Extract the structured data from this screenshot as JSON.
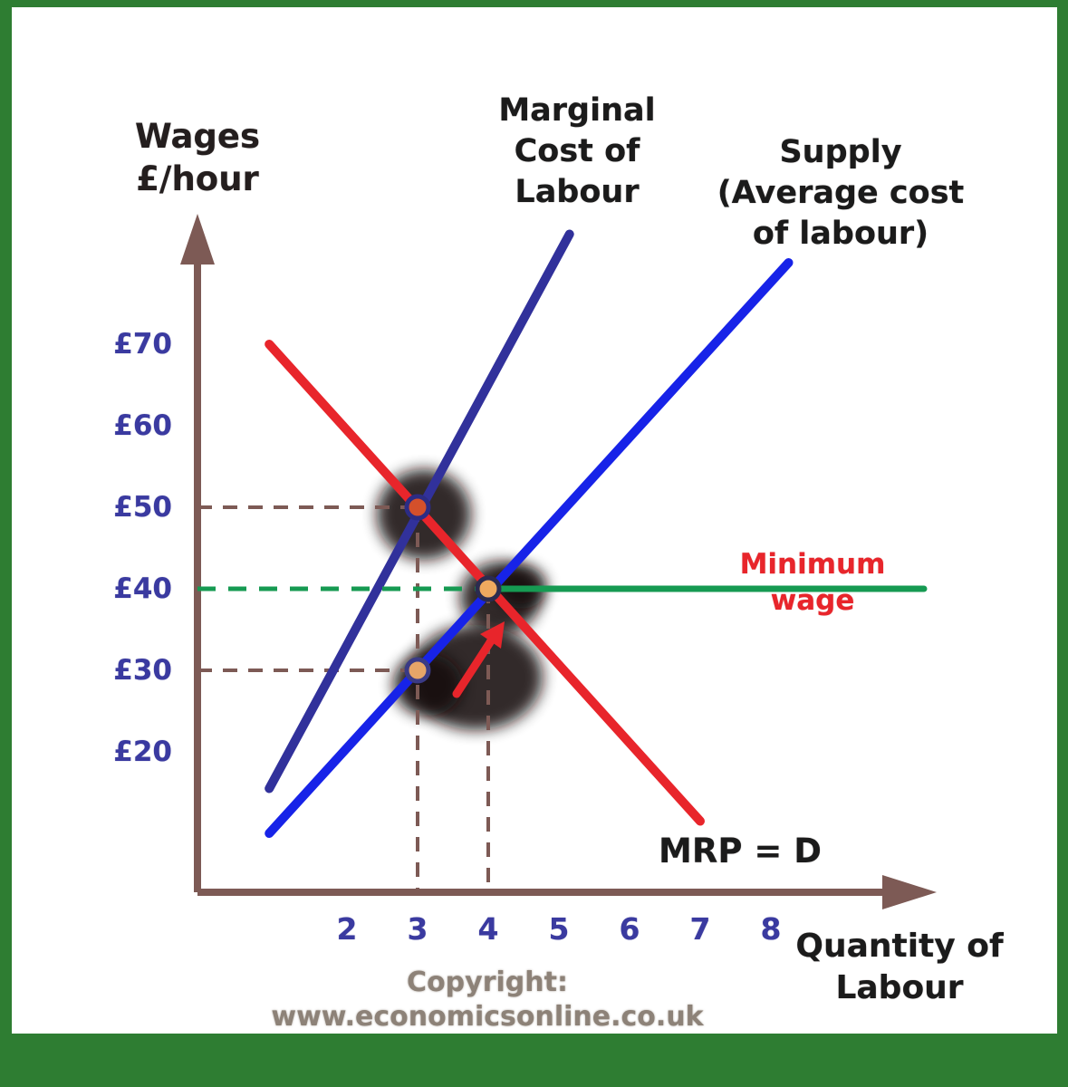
{
  "page": {
    "frame_color": "#2e7d32",
    "canvas_color": "#ffffff",
    "copyright": "Copyright: www.economicsonline.co.uk"
  },
  "chart_data": {
    "type": "line",
    "x_axis": {
      "label_lines": [
        "Quantity of",
        "Labour"
      ],
      "ticks": [
        "2",
        "3",
        "4",
        "5",
        "6",
        "7",
        "8"
      ],
      "tick_values": [
        2,
        3,
        4,
        5,
        6,
        7,
        8
      ],
      "range": [
        0,
        9.5
      ]
    },
    "y_axis": {
      "label_lines": [
        "Wages",
        "£/hour"
      ],
      "ticks": [
        "£70",
        "£60",
        "£50",
        "£40",
        "£30",
        "£20"
      ],
      "tick_values": [
        70,
        60,
        50,
        40,
        30,
        20
      ],
      "range": [
        10,
        85
      ],
      "unit": "£/hour"
    },
    "series": [
      {
        "name": "Marginal Cost of Labour",
        "label_lines": [
          "Marginal",
          "Cost of",
          "Labour"
        ],
        "color": "#31319b",
        "points": [
          [
            0.9,
            15.5
          ],
          [
            5.15,
            83.5
          ]
        ]
      },
      {
        "name": "Supply (Average cost of labour)",
        "label_lines": [
          "Supply",
          "(Average cost",
          "of labour)"
        ],
        "color": "#1723e8",
        "points": [
          [
            0.9,
            10
          ],
          [
            8.25,
            80
          ]
        ]
      },
      {
        "name": "MRP = D",
        "label": "MRP = D",
        "color": "#e8252b",
        "points": [
          [
            0.9,
            70
          ],
          [
            7.0,
            11.5
          ]
        ]
      },
      {
        "name": "Minimum wage",
        "label": "Minimum wage",
        "color": "#169a52",
        "type": "hline",
        "y": 40,
        "dashed_until_q": 4
      }
    ],
    "key_points": [
      {
        "q": 3,
        "wage": 50,
        "fill": "#d4502b",
        "ring": "#2c2c84"
      },
      {
        "q": 4,
        "wage": 40,
        "fill": "#efa95f",
        "ring": "#2b2b4f"
      },
      {
        "q": 3,
        "wage": 30,
        "fill": "#e6a568",
        "ring": "#3a3a85"
      }
    ],
    "guides": [
      {
        "type": "h",
        "wage": 50,
        "to_q": 3
      },
      {
        "type": "h",
        "wage": 30,
        "to_q": 3
      },
      {
        "type": "v",
        "q": 3,
        "from_wage": 50
      },
      {
        "type": "v",
        "q": 4,
        "from_wage": 40
      }
    ],
    "annotations": [
      {
        "name": "red-arrow",
        "color": "#e8252b"
      }
    ],
    "grid": false,
    "legend_position": "labels-on-chart"
  }
}
